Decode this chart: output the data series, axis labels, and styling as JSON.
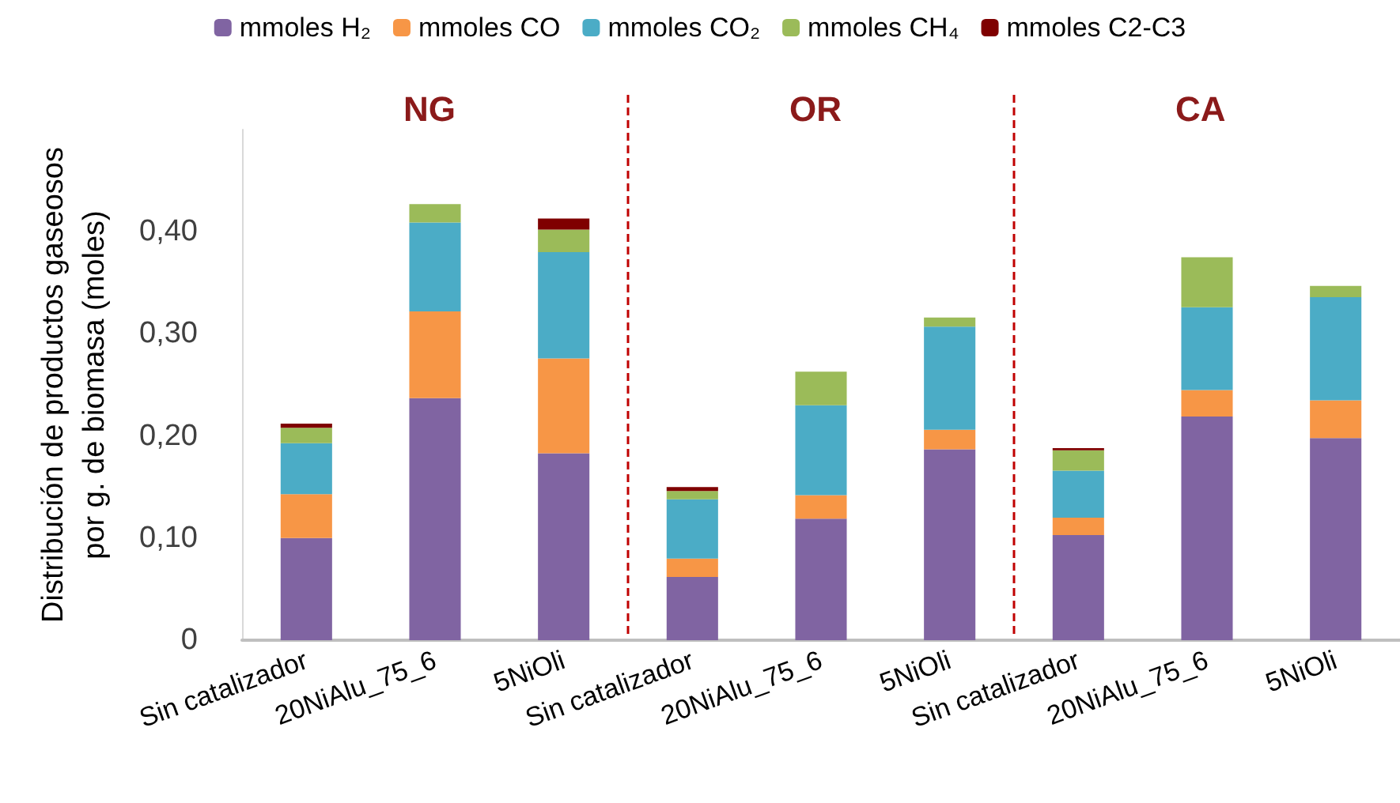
{
  "chart_data": {
    "type": "bar",
    "stacked": true,
    "ylabel": "Distribución de productos gaseosos\npor g. de biomasa (moles)",
    "categories": [
      "Sin catalizador",
      "20NiAlu_75_6",
      "5NiOli",
      "Sin catalizador",
      "20NiAlu_75_6",
      "5NiOli",
      "Sin catalizador",
      "20NiAlu_75_6",
      "5NiOli"
    ],
    "series": [
      {
        "name": "mmoles H₂",
        "color": "#8064a2",
        "values": [
          0.1,
          0.237,
          0.183,
          0.062,
          0.119,
          0.187,
          0.103,
          0.219,
          0.198
        ]
      },
      {
        "name": "mmoles CO",
        "color": "#f79646",
        "values": [
          0.043,
          0.085,
          0.093,
          0.018,
          0.023,
          0.019,
          0.017,
          0.026,
          0.037
        ]
      },
      {
        "name": "mmoles CO₂",
        "color": "#4bacc6",
        "values": [
          0.05,
          0.087,
          0.104,
          0.058,
          0.088,
          0.101,
          0.046,
          0.081,
          0.101
        ]
      },
      {
        "name": "mmoles CH₄",
        "color": "#9bbb59",
        "values": [
          0.015,
          0.018,
          0.022,
          0.008,
          0.033,
          0.009,
          0.02,
          0.049,
          0.011
        ]
      },
      {
        "name": "mmoles C2-C3",
        "color": "#7f0000",
        "values": [
          0.004,
          0,
          0.011,
          0.004,
          0,
          0,
          0.002,
          0,
          0
        ]
      }
    ],
    "ylim": [
      0,
      0.5
    ],
    "yticks": [
      0,
      {
        "value": 0.1,
        "label": "0,10"
      },
      {
        "value": 0.2,
        "label": "0,20"
      },
      {
        "value": 0.3,
        "label": "0,30"
      },
      {
        "value": 0.4,
        "label": "0,40"
      }
    ],
    "annotations": [
      "NG",
      "OR",
      "CA"
    ],
    "legend": "top"
  }
}
